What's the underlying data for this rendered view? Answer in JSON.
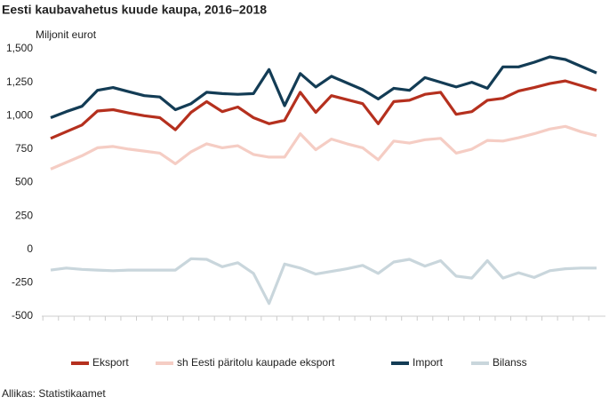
{
  "chart_data": {
    "type": "line",
    "title": "Eesti kaubavahetus kuude kaupa, 2016–2018",
    "y_label": "Miljonit eurot",
    "source": "Allikas: Statistikaamet",
    "categories": [
      null,
      null,
      null,
      null,
      null,
      null,
      null,
      null,
      null,
      null,
      null,
      null,
      null,
      null,
      null,
      null,
      null,
      null,
      null,
      null,
      null,
      null,
      null,
      null,
      null,
      null,
      null,
      null,
      null,
      null,
      null,
      null,
      null,
      null,
      null,
      null
    ],
    "ylim": [
      -500,
      1500
    ],
    "yticks": [
      {
        "value": 1500,
        "label": "1,500"
      },
      {
        "value": 1250,
        "label": "1,250"
      },
      {
        "value": 1000,
        "label": "1,000"
      },
      750,
      500,
      250,
      0,
      -250,
      -500
    ],
    "grid": false,
    "legend": "bottom",
    "series": [
      {
        "name": "Eksport",
        "color": "#b5301e",
        "values": [
          830,
          880,
          930,
          1035,
          1045,
          1020,
          1000,
          985,
          895,
          1025,
          1105,
          1030,
          1065,
          985,
          940,
          965,
          1175,
          1025,
          1150,
          1120,
          1090,
          940,
          1105,
          1115,
          1160,
          1175,
          1010,
          1030,
          1115,
          1130,
          1185,
          1210,
          1240,
          1260,
          1225,
          1190
        ]
      },
      {
        "name": "sh Eesti päritolu kaupade eksport",
        "color": "#f5cdc4",
        "values": [
          600,
          650,
          700,
          760,
          770,
          750,
          735,
          720,
          640,
          730,
          790,
          760,
          775,
          710,
          690,
          690,
          865,
          745,
          825,
          790,
          760,
          670,
          810,
          795,
          820,
          830,
          720,
          750,
          815,
          810,
          835,
          865,
          900,
          920,
          880,
          850
        ]
      },
      {
        "name": "Import",
        "color": "#133c55",
        "values": [
          985,
          1030,
          1070,
          1190,
          1210,
          1180,
          1150,
          1140,
          1045,
          1090,
          1175,
          1165,
          1160,
          1165,
          1345,
          1075,
          1315,
          1215,
          1295,
          1245,
          1195,
          1125,
          1205,
          1190,
          1285,
          1250,
          1215,
          1250,
          1205,
          1365,
          1365,
          1400,
          1440,
          1420,
          1370,
          1320
        ]
      },
      {
        "name": "Bilanss",
        "color": "#c9d6dc",
        "values": [
          -155,
          -140,
          -150,
          -155,
          -160,
          -155,
          -155,
          -155,
          -155,
          -70,
          -75,
          -130,
          -100,
          -180,
          -405,
          -110,
          -140,
          -185,
          -165,
          -145,
          -120,
          -180,
          -95,
          -75,
          -125,
          -85,
          -200,
          -215,
          -85,
          -215,
          -175,
          -210,
          -160,
          -145,
          -140,
          -140
        ]
      }
    ]
  }
}
